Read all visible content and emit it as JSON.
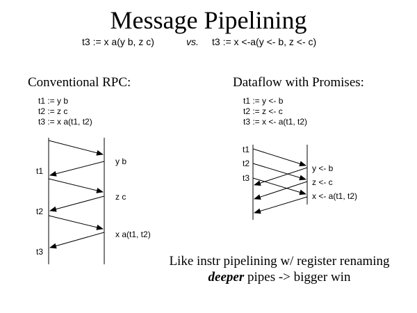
{
  "title": "Message Pipelining",
  "subtitle": {
    "left": "t3 := x a(y b, z c)",
    "vs": "vs.",
    "right": "t3 := x <-a(y <- b, z <- c)"
  },
  "left": {
    "heading": "Conventional RPC:",
    "code": [
      "t1 := y b",
      "t2 := z c",
      "t3 := x a(t1, t2)"
    ],
    "client_labels": [
      "t1",
      "t2",
      "t3"
    ],
    "server_labels": [
      "y b",
      "z c",
      "x a(t1, t2)"
    ]
  },
  "right": {
    "heading": "Dataflow with Promises:",
    "code": [
      "t1 := y <- b",
      "t2 := z <- c",
      "t3 := x <- a(t1, t2)"
    ],
    "client_labels": [
      "t1",
      "t2",
      "t3"
    ],
    "server_labels": [
      "y <- b",
      "z <- c",
      "x <- a(t1, t2)"
    ]
  },
  "footer": {
    "line1": "Like instr pipelining w/ register renaming",
    "line2_em": "deeper",
    "line2_rest": " pipes -> bigger win"
  }
}
